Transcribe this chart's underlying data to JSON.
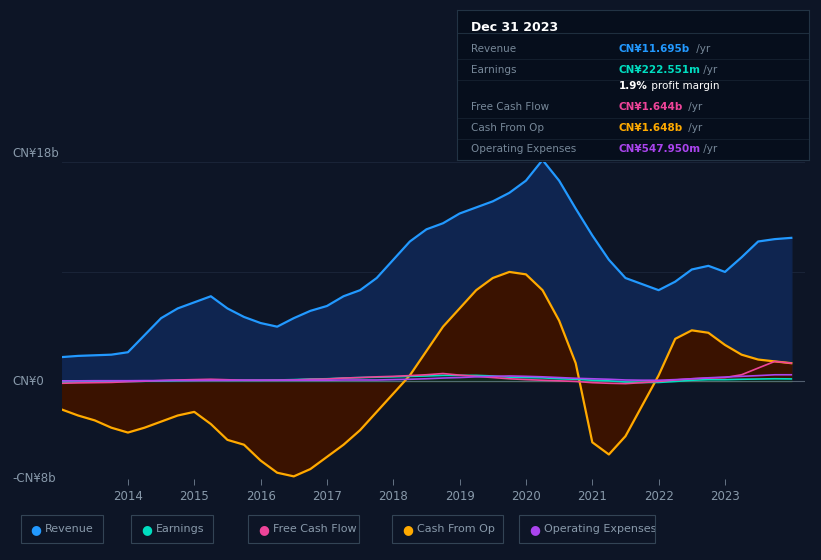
{
  "bg_color": "#0d1526",
  "plot_bg": "#0d1526",
  "years": [
    2013.0,
    2013.25,
    2013.5,
    2013.75,
    2014.0,
    2014.25,
    2014.5,
    2014.75,
    2015.0,
    2015.25,
    2015.5,
    2015.75,
    2016.0,
    2016.25,
    2016.5,
    2016.75,
    2017.0,
    2017.25,
    2017.5,
    2017.75,
    2018.0,
    2018.25,
    2018.5,
    2018.75,
    2019.0,
    2019.25,
    2019.5,
    2019.75,
    2020.0,
    2020.25,
    2020.5,
    2020.75,
    2021.0,
    2021.25,
    2021.5,
    2021.75,
    2022.0,
    2022.25,
    2022.5,
    2022.75,
    2023.0,
    2023.25,
    2023.5,
    2023.75,
    2024.0
  ],
  "revenue": [
    2.0,
    2.1,
    2.15,
    2.2,
    2.4,
    3.8,
    5.2,
    6.0,
    6.5,
    7.0,
    6.0,
    5.3,
    4.8,
    4.5,
    5.2,
    5.8,
    6.2,
    7.0,
    7.5,
    8.5,
    10.0,
    11.5,
    12.5,
    13.0,
    13.8,
    14.3,
    14.8,
    15.5,
    16.5,
    18.2,
    16.5,
    14.2,
    12.0,
    10.0,
    8.5,
    8.0,
    7.5,
    8.2,
    9.2,
    9.5,
    9.0,
    10.2,
    11.5,
    11.695,
    11.8
  ],
  "cash_from_op": [
    -2.3,
    -2.8,
    -3.2,
    -3.8,
    -4.2,
    -3.8,
    -3.3,
    -2.8,
    -2.5,
    -3.5,
    -4.8,
    -5.2,
    -6.5,
    -7.5,
    -7.8,
    -7.2,
    -6.2,
    -5.2,
    -4.0,
    -2.5,
    -1.0,
    0.5,
    2.5,
    4.5,
    6.0,
    7.5,
    8.5,
    9.0,
    8.8,
    7.5,
    5.0,
    1.5,
    -5.0,
    -6.0,
    -4.5,
    -2.0,
    0.5,
    3.5,
    4.2,
    4.0,
    3.0,
    2.2,
    1.8,
    1.648,
    1.5
  ],
  "earnings": [
    -0.05,
    -0.05,
    -0.03,
    -0.02,
    0.0,
    0.02,
    0.05,
    0.08,
    0.1,
    0.12,
    0.1,
    0.1,
    0.1,
    0.12,
    0.15,
    0.2,
    0.22,
    0.28,
    0.32,
    0.35,
    0.38,
    0.42,
    0.45,
    0.5,
    0.5,
    0.5,
    0.45,
    0.35,
    0.32,
    0.3,
    0.22,
    0.18,
    0.1,
    0.05,
    -0.05,
    -0.08,
    -0.08,
    0.0,
    0.1,
    0.15,
    0.15,
    0.18,
    0.2,
    0.222,
    0.21
  ],
  "free_cash_flow": [
    -0.15,
    -0.12,
    -0.1,
    -0.08,
    -0.02,
    0.02,
    0.08,
    0.12,
    0.15,
    0.18,
    0.14,
    0.1,
    0.1,
    0.1,
    0.12,
    0.18,
    0.2,
    0.28,
    0.32,
    0.38,
    0.42,
    0.48,
    0.55,
    0.65,
    0.52,
    0.42,
    0.32,
    0.22,
    0.15,
    0.1,
    0.05,
    0.0,
    -0.1,
    -0.15,
    -0.18,
    -0.1,
    0.0,
    0.12,
    0.22,
    0.28,
    0.32,
    0.55,
    1.1,
    1.644,
    1.5
  ],
  "operating_expenses": [
    0.05,
    0.05,
    0.06,
    0.06,
    0.06,
    0.07,
    0.07,
    0.08,
    0.08,
    0.09,
    0.09,
    0.1,
    0.1,
    0.1,
    0.1,
    0.1,
    0.1,
    0.12,
    0.12,
    0.12,
    0.15,
    0.18,
    0.22,
    0.28,
    0.32,
    0.38,
    0.42,
    0.45,
    0.42,
    0.38,
    0.32,
    0.26,
    0.22,
    0.18,
    0.12,
    0.1,
    0.1,
    0.15,
    0.22,
    0.3,
    0.36,
    0.42,
    0.48,
    0.548,
    0.548
  ],
  "ylim_min": -8,
  "ylim_max": 18,
  "xlim_min": 2013.0,
  "xlim_max": 2024.2,
  "xticks": [
    2014,
    2015,
    2016,
    2017,
    2018,
    2019,
    2020,
    2021,
    2022,
    2023
  ],
  "revenue_line_color": "#2299ff",
  "revenue_fill_color": "#0f2550",
  "cash_line_color": "#ffaa00",
  "cash_fill_color": "#3a1200",
  "earnings_line_color": "#00ddc0",
  "earnings_fill_color": "#003530",
  "fcf_line_color": "#ee4499",
  "opex_line_color": "#aa44ee",
  "zero_line_color": "#99aabb",
  "grid_color": "#1a2438",
  "text_color": "#8899aa",
  "info_box_bg": "#060e1c",
  "info_date": "Dec 31 2023",
  "info_rows": [
    {
      "label": "Revenue",
      "value": "CN¥11.695b",
      "suffix": " /yr",
      "value_color": "#2299ff",
      "label_color": "#778899"
    },
    {
      "label": "Earnings",
      "value": "CN¥222.551m",
      "suffix": " /yr",
      "value_color": "#00ddc0",
      "label_color": "#778899"
    },
    {
      "label": "",
      "value": "1.9%",
      "suffix": " profit margin",
      "value_color": "#ffffff",
      "label_color": ""
    },
    {
      "label": "Free Cash Flow",
      "value": "CN¥1.644b",
      "suffix": " /yr",
      "value_color": "#ee4499",
      "label_color": "#778899"
    },
    {
      "label": "Cash From Op",
      "value": "CN¥1.648b",
      "suffix": " /yr",
      "value_color": "#ffaa00",
      "label_color": "#778899"
    },
    {
      "label": "Operating Expenses",
      "value": "CN¥547.950m",
      "suffix": " /yr",
      "value_color": "#aa44ee",
      "label_color": "#778899"
    }
  ],
  "legend_items": [
    {
      "label": "Revenue",
      "color": "#2299ff"
    },
    {
      "label": "Earnings",
      "color": "#00ddc0"
    },
    {
      "label": "Free Cash Flow",
      "color": "#ee4499"
    },
    {
      "label": "Cash From Op",
      "color": "#ffaa00"
    },
    {
      "label": "Operating Expenses",
      "color": "#aa44ee"
    }
  ]
}
